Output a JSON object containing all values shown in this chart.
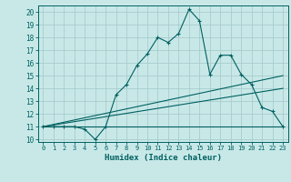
{
  "title": "",
  "xlabel": "Humidex (Indice chaleur)",
  "bg_color": "#c8e8e8",
  "grid_color": "#a8cccc",
  "line_color": "#006060",
  "xlim": [
    -0.5,
    23.5
  ],
  "ylim": [
    9.8,
    20.5
  ],
  "yticks": [
    10,
    11,
    12,
    13,
    14,
    15,
    16,
    17,
    18,
    19,
    20
  ],
  "xticks": [
    0,
    1,
    2,
    3,
    4,
    5,
    6,
    7,
    8,
    9,
    10,
    11,
    12,
    13,
    14,
    15,
    16,
    17,
    18,
    19,
    20,
    21,
    22,
    23
  ],
  "series1_x": [
    0,
    1,
    2,
    3,
    4,
    5,
    6,
    7,
    8,
    9,
    10,
    11,
    12,
    13,
    14,
    15,
    16,
    17,
    18,
    19,
    20,
    21,
    22,
    23
  ],
  "series1_y": [
    11,
    11,
    11,
    11,
    10.8,
    10.0,
    11.0,
    13.5,
    14.3,
    15.8,
    16.7,
    18.0,
    17.6,
    18.3,
    20.2,
    19.3,
    15.1,
    16.6,
    16.6,
    15.1,
    14.3,
    12.5,
    12.2,
    11.0
  ],
  "series2_x": [
    0,
    23
  ],
  "series2_y": [
    11,
    11
  ],
  "series3_x": [
    0,
    23
  ],
  "series3_y": [
    11,
    15.0
  ],
  "series4_x": [
    0,
    23
  ],
  "series4_y": [
    11,
    14.0
  ]
}
